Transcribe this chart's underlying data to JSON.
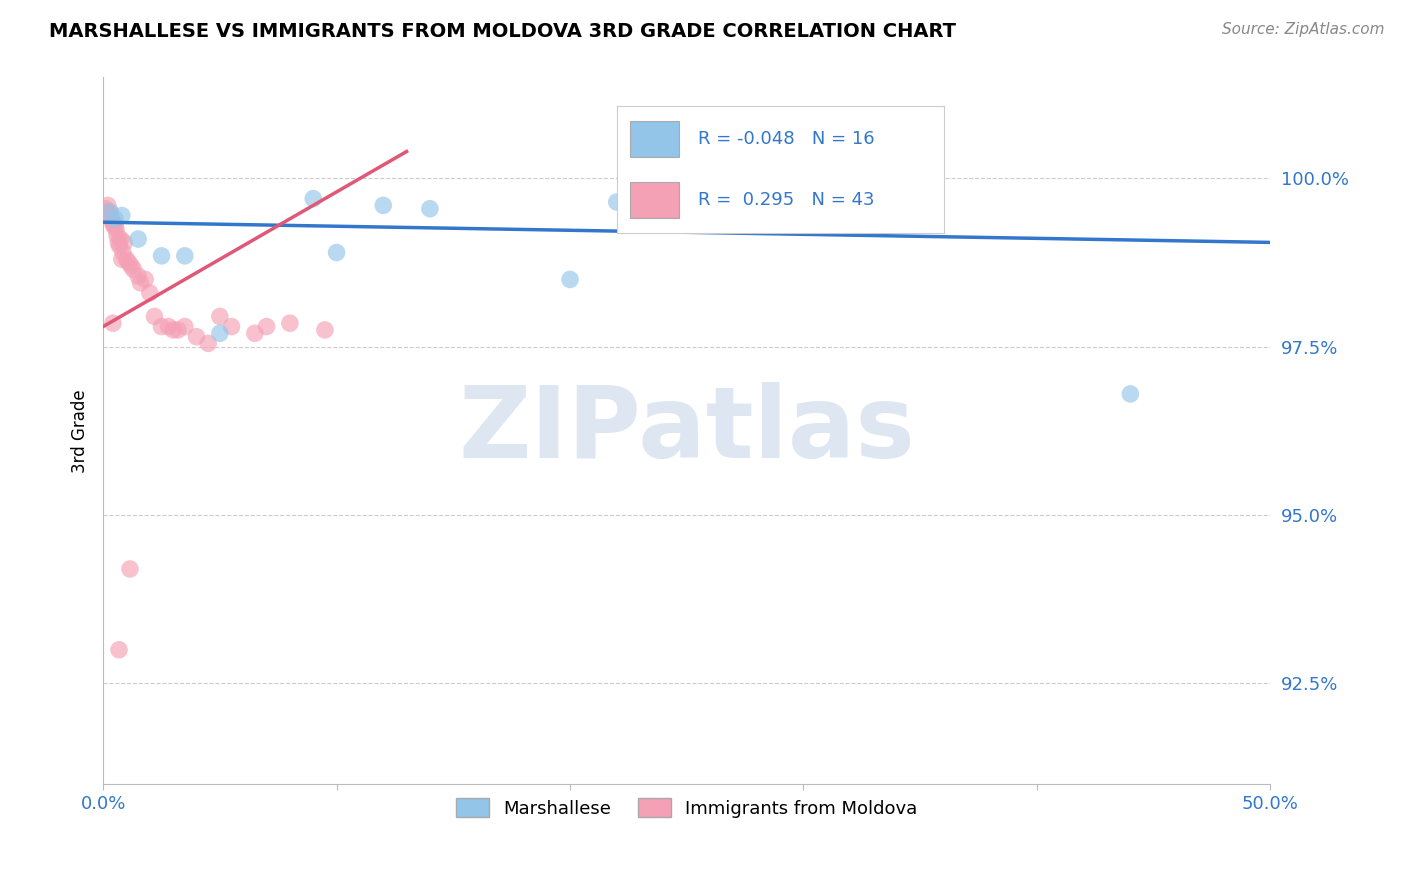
{
  "title": "MARSHALLESE VS IMMIGRANTS FROM MOLDOVA 3RD GRADE CORRELATION CHART",
  "source_text": "Source: ZipAtlas.com",
  "ylabel": "3rd Grade",
  "xlim": [
    0.0,
    50.0
  ],
  "ylim": [
    91.0,
    101.5
  ],
  "yticks": [
    92.5,
    95.0,
    97.5,
    100.0
  ],
  "ytick_labels": [
    "92.5%",
    "95.0%",
    "97.5%",
    "100.0%"
  ],
  "xtick_labels": [
    "0.0%",
    "",
    "",
    "",
    "",
    "50.0%"
  ],
  "legend_labels": [
    "Marshallese",
    "Immigrants from Moldova"
  ],
  "r_blue": -0.048,
  "n_blue": 16,
  "r_pink": 0.295,
  "n_pink": 43,
  "blue_color": "#92C5E8",
  "pink_color": "#F4A0B5",
  "blue_line_color": "#3377CC",
  "pink_line_color": "#E05878",
  "watermark": "ZIPatlas",
  "watermark_color": "#C8D8E8",
  "blue_line_x0": 0.0,
  "blue_line_y0": 99.35,
  "blue_line_x1": 50.0,
  "blue_line_y1": 99.05,
  "pink_line_x0": 0.0,
  "pink_line_y0": 97.8,
  "pink_line_x1": 13.0,
  "pink_line_y1": 100.4,
  "blue_x": [
    0.3,
    0.5,
    0.8,
    1.5,
    2.5,
    3.5,
    9.0,
    12.0,
    14.0,
    20.0,
    22.0,
    27.0,
    34.0,
    44.0,
    10.0,
    5.0
  ],
  "blue_y": [
    99.5,
    99.4,
    99.45,
    99.1,
    98.85,
    98.85,
    99.7,
    99.6,
    99.55,
    98.5,
    99.65,
    99.5,
    99.65,
    96.8,
    98.9,
    97.7
  ],
  "pink_x": [
    0.05,
    0.1,
    0.15,
    0.2,
    0.25,
    0.3,
    0.35,
    0.4,
    0.45,
    0.5,
    0.55,
    0.6,
    0.65,
    0.7,
    0.75,
    0.8,
    0.85,
    0.9,
    1.0,
    1.1,
    1.2,
    1.3,
    1.5,
    1.6,
    1.8,
    2.0,
    2.2,
    2.5,
    3.0,
    3.5,
    4.0,
    4.5,
    5.0,
    5.5,
    6.5,
    7.0,
    8.0,
    9.5,
    2.8,
    3.2,
    0.42,
    1.15,
    0.68
  ],
  "pink_y": [
    99.5,
    99.55,
    99.5,
    99.6,
    99.45,
    99.5,
    99.4,
    99.35,
    99.3,
    99.3,
    99.25,
    99.15,
    99.05,
    99.0,
    99.1,
    98.8,
    98.9,
    99.05,
    98.8,
    98.75,
    98.7,
    98.65,
    98.55,
    98.45,
    98.5,
    98.3,
    97.95,
    97.8,
    97.75,
    97.8,
    97.65,
    97.55,
    97.95,
    97.8,
    97.7,
    97.8,
    97.85,
    97.75,
    97.8,
    97.75,
    97.85,
    94.2,
    93.0
  ]
}
